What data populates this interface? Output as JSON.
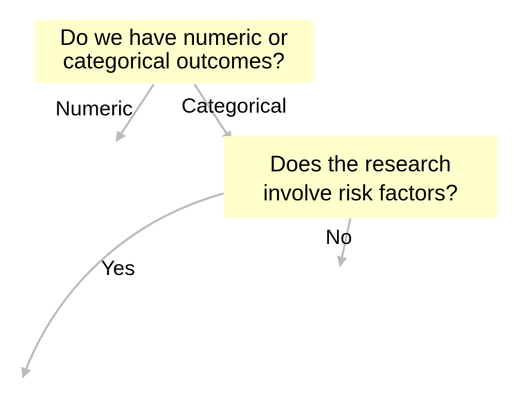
{
  "diagram": {
    "nodes": {
      "outcomes": {
        "line1": "Do we have numeric or",
        "line2": "categorical outcomes?"
      },
      "risk": {
        "line1": "Does the research",
        "line2": "involve risk factors?"
      }
    },
    "edges": {
      "numeric": "Numeric",
      "categorical": "Categorical",
      "no": "No",
      "yes": "Yes"
    },
    "colors": {
      "node_fill": "#ffffcc",
      "arrow": "#bbbbbb",
      "text": "#000000"
    }
  }
}
